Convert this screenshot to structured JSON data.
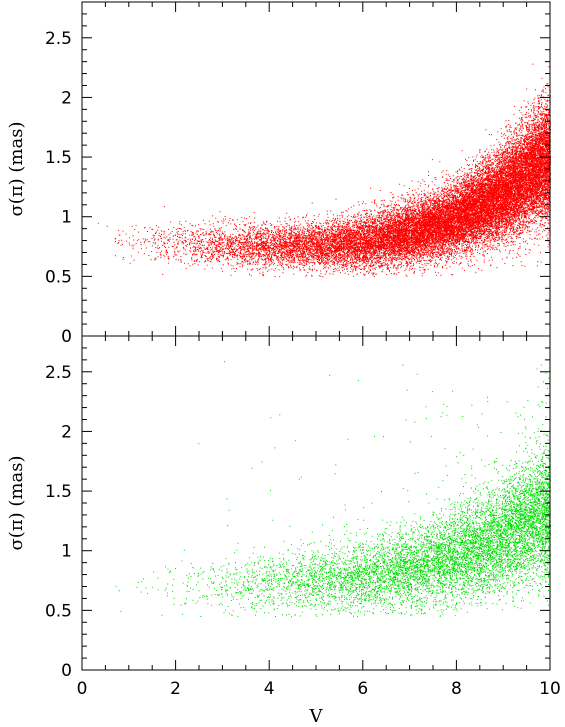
{
  "chart_data": [
    {
      "type": "scatter",
      "panel": "top",
      "xlabel": "",
      "ylabel": "σ(π)  (mas)",
      "xlim": [
        0,
        10
      ],
      "ylim": [
        0,
        2.8
      ],
      "xticks": [
        0,
        2,
        4,
        6,
        8,
        10
      ],
      "yticks": [
        0,
        0.5,
        1,
        1.5,
        2,
        2.5
      ],
      "xtick_labels": [],
      "ytick_labels": [
        "0",
        "0.5",
        "1",
        "1.5",
        "2",
        "2.5"
      ],
      "grid": false,
      "series": [
        {
          "color": "#ff0000",
          "density": "very high",
          "trend_x": [
            0.0,
            2.0,
            4.0,
            5.0,
            6.0,
            7.0,
            8.0,
            9.0,
            10.0
          ],
          "trend_y": [
            0.85,
            0.77,
            0.75,
            0.76,
            0.79,
            0.86,
            0.99,
            1.2,
            1.5
          ],
          "spread_y": [
            0.1,
            0.12,
            0.12,
            0.13,
            0.15,
            0.17,
            0.2,
            0.25,
            0.33
          ],
          "x_range": [
            0.0,
            10.0
          ],
          "y_range": [
            0.5,
            2.3
          ]
        }
      ]
    },
    {
      "type": "scatter",
      "panel": "bottom",
      "xlabel": "V",
      "ylabel": "σ(π)  (mas)",
      "xlim": [
        0,
        10
      ],
      "ylim": [
        0,
        2.8
      ],
      "xticks": [
        0,
        2,
        4,
        6,
        8,
        10
      ],
      "yticks": [
        0,
        0.5,
        1,
        1.5,
        2,
        2.5
      ],
      "xtick_labels": [
        "0",
        "2",
        "4",
        "6",
        "8",
        "10"
      ],
      "ytick_labels": [
        "0",
        "0.5",
        "1",
        "1.5",
        "2",
        "2.5"
      ],
      "grid": false,
      "series": [
        {
          "color": "#00dd00",
          "density": "moderate",
          "trend_x": [
            1.0,
            3.0,
            4.0,
            5.0,
            6.0,
            7.0,
            8.0,
            9.0,
            10.0
          ],
          "trend_y": [
            0.7,
            0.72,
            0.73,
            0.75,
            0.78,
            0.85,
            0.95,
            1.12,
            1.35
          ],
          "spread_y": [
            0.12,
            0.14,
            0.15,
            0.16,
            0.18,
            0.2,
            0.23,
            0.28,
            0.33
          ],
          "x_range": [
            0.5,
            10.0
          ],
          "y_range": [
            0.45,
            2.6
          ]
        }
      ]
    }
  ]
}
